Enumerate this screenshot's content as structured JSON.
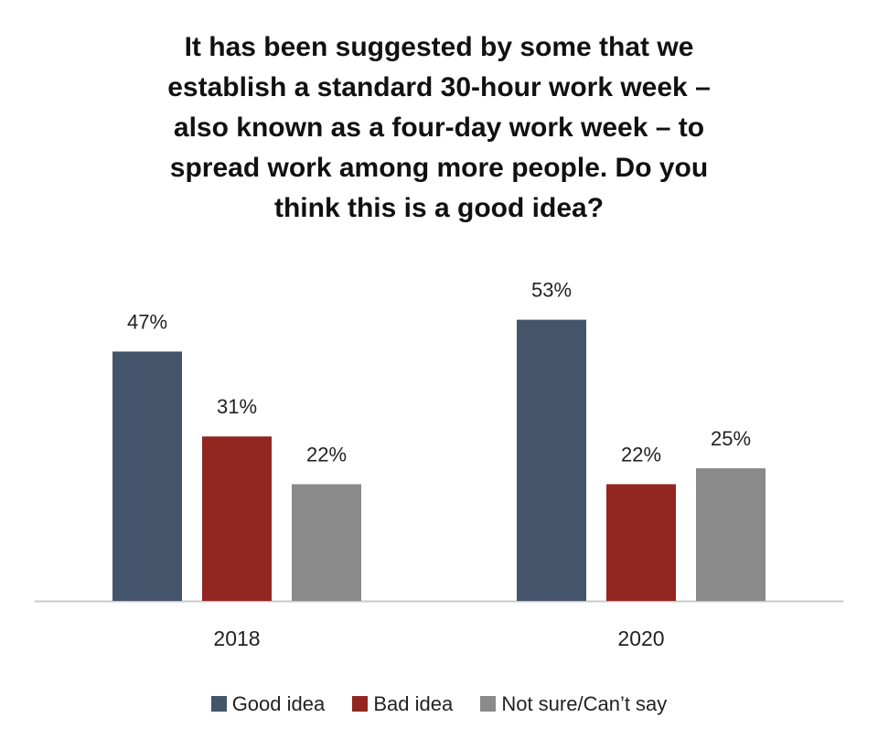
{
  "chart_data": {
    "type": "bar",
    "title_lines": [
      "It has been suggested by some that we",
      "establish a standard 30-hour work week –",
      "also known as a four-day work week –  to",
      "spread work among more people. Do you",
      "think this is a good idea?"
    ],
    "categories": [
      "2018",
      "2020"
    ],
    "series": [
      {
        "name": "Good idea",
        "values": [
          47,
          53
        ],
        "labels": [
          "47%",
          "53%"
        ],
        "color": "#44546a"
      },
      {
        "name": "Bad idea",
        "values": [
          31,
          22
        ],
        "labels": [
          "31%",
          "22%"
        ],
        "color": "#922621"
      },
      {
        "name": "Not sure/Can’t say",
        "values": [
          22,
          25
        ],
        "labels": [
          "22%",
          "25%"
        ],
        "color": "#8a8a8a"
      }
    ],
    "ylim": [
      0,
      60
    ],
    "unit": "%",
    "legend_position": "bottom",
    "grid": false
  }
}
